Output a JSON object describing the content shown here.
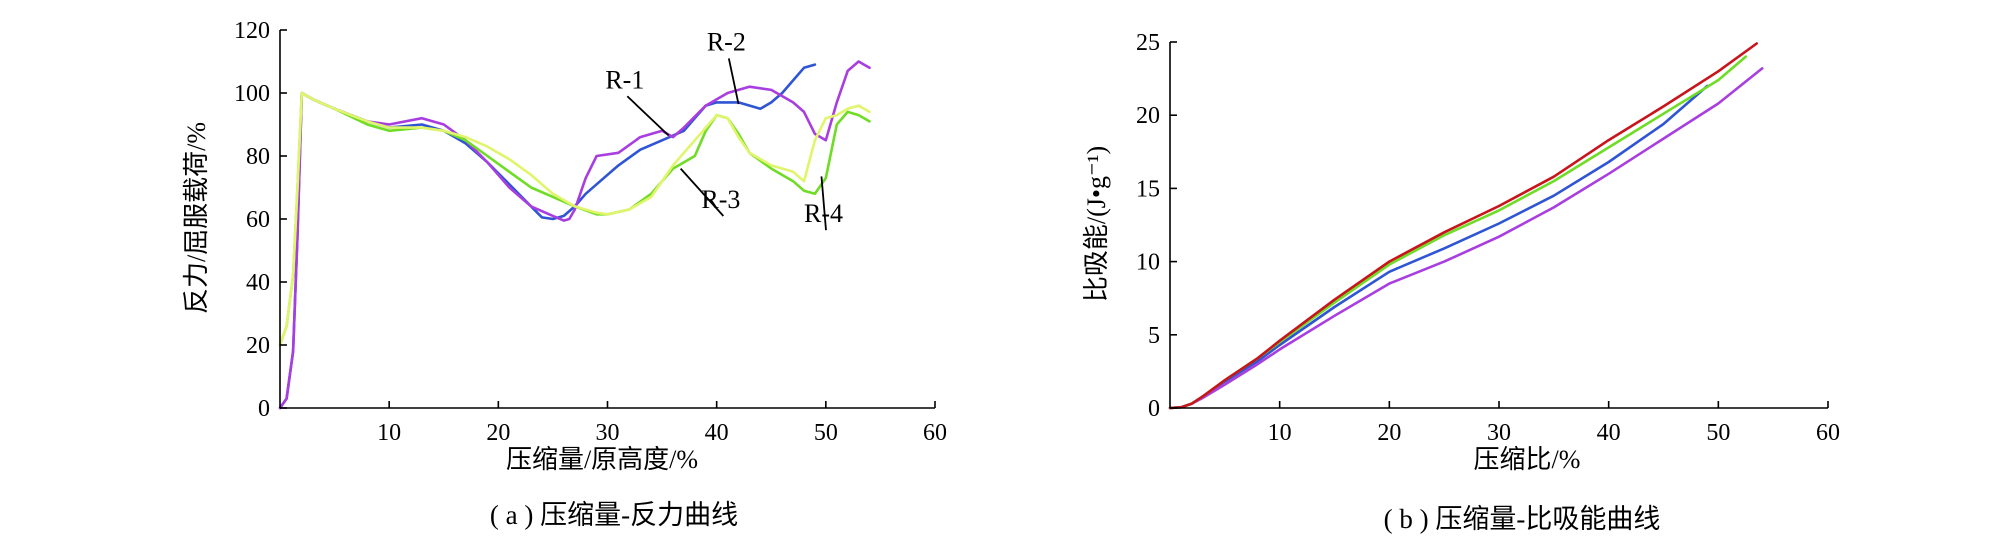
{
  "chart_data": [
    {
      "type": "line",
      "caption": "( a ) 压缩量-反力曲线",
      "xlabel": "压缩量/原高度/%",
      "ylabel": "反力/屈服载荷/%",
      "xlim": [
        0,
        60
      ],
      "ylim": [
        0,
        120
      ],
      "xticks": [
        10,
        20,
        30,
        40,
        50,
        60
      ],
      "yticks": [
        0,
        20,
        40,
        60,
        80,
        100,
        120
      ],
      "grid": false,
      "series": [
        {
          "name": "R-1",
          "color": "#2f55d4",
          "points": [
            [
              0,
              0
            ],
            [
              0.6,
              3
            ],
            [
              1.2,
              18
            ],
            [
              1.6,
              55
            ],
            [
              2.0,
              100
            ],
            [
              3,
              98
            ],
            [
              5,
              95
            ],
            [
              8,
              91
            ],
            [
              10,
              89
            ],
            [
              13,
              90
            ],
            [
              15,
              88
            ],
            [
              17,
              84
            ],
            [
              19,
              78
            ],
            [
              21,
              71
            ],
            [
              23,
              64
            ],
            [
              24,
              60.5
            ],
            [
              25,
              60
            ],
            [
              26,
              61
            ],
            [
              27,
              64
            ],
            [
              28,
              68
            ],
            [
              29,
              71
            ],
            [
              31,
              77
            ],
            [
              33,
              82
            ],
            [
              35,
              85
            ],
            [
              37,
              88
            ],
            [
              38,
              92
            ],
            [
              39,
              96
            ],
            [
              40,
              97
            ],
            [
              42,
              97
            ],
            [
              44,
              95
            ],
            [
              45,
              97
            ],
            [
              46,
              100
            ],
            [
              47,
              104
            ],
            [
              48,
              108
            ],
            [
              49,
              109
            ]
          ]
        },
        {
          "name": "R-2",
          "color": "#a93ee0",
          "points": [
            [
              0,
              0
            ],
            [
              0.6,
              3
            ],
            [
              1.2,
              18
            ],
            [
              1.6,
              55
            ],
            [
              2.0,
              100
            ],
            [
              3,
              98
            ],
            [
              5,
              95
            ],
            [
              8,
              91
            ],
            [
              10,
              90
            ],
            [
              13,
              92
            ],
            [
              15,
              90
            ],
            [
              17,
              85
            ],
            [
              19,
              78
            ],
            [
              21,
              70
            ],
            [
              23,
              64
            ],
            [
              25,
              61
            ],
            [
              26,
              59.5
            ],
            [
              26.5,
              60
            ],
            [
              27,
              63
            ],
            [
              28,
              73
            ],
            [
              29,
              80
            ],
            [
              31,
              81
            ],
            [
              33,
              86
            ],
            [
              35,
              88
            ],
            [
              36,
              86
            ],
            [
              37,
              89
            ],
            [
              39,
              96
            ],
            [
              41,
              100
            ],
            [
              43,
              102
            ],
            [
              45,
              101
            ],
            [
              47,
              97
            ],
            [
              48,
              94
            ],
            [
              49,
              87
            ],
            [
              50,
              85
            ],
            [
              51,
              97
            ],
            [
              52,
              107
            ],
            [
              53,
              110
            ],
            [
              54,
              108
            ]
          ]
        },
        {
          "name": "R-3",
          "color": "#6fdc25",
          "points": [
            [
              0,
              20
            ],
            [
              0.6,
              26
            ],
            [
              1.2,
              42
            ],
            [
              1.6,
              70
            ],
            [
              2.0,
              100
            ],
            [
              3,
              98
            ],
            [
              5,
              95
            ],
            [
              8,
              90
            ],
            [
              10,
              88
            ],
            [
              13,
              89
            ],
            [
              15,
              88
            ],
            [
              17,
              85
            ],
            [
              19,
              80
            ],
            [
              21,
              75
            ],
            [
              23,
              70
            ],
            [
              25,
              67
            ],
            [
              27,
              64
            ],
            [
              29,
              61.5
            ],
            [
              30,
              61.5
            ],
            [
              32,
              63
            ],
            [
              34,
              68
            ],
            [
              36,
              76
            ],
            [
              38,
              80
            ],
            [
              39,
              88
            ],
            [
              40,
              93
            ],
            [
              41,
              92
            ],
            [
              42,
              87
            ],
            [
              43,
              81
            ],
            [
              45,
              76
            ],
            [
              47,
              72
            ],
            [
              48,
              69
            ],
            [
              49,
              68
            ],
            [
              50,
              73
            ],
            [
              51,
              90
            ],
            [
              52,
              94
            ],
            [
              53,
              93
            ],
            [
              54,
              91
            ]
          ]
        },
        {
          "name": "R-4",
          "color": "#e0f56b",
          "points": [
            [
              0,
              20
            ],
            [
              0.6,
              26
            ],
            [
              1.2,
              42
            ],
            [
              1.6,
              70
            ],
            [
              2.0,
              100
            ],
            [
              3,
              98
            ],
            [
              5,
              95
            ],
            [
              8,
              91
            ],
            [
              10,
              89
            ],
            [
              13,
              89
            ],
            [
              15,
              88
            ],
            [
              17,
              86
            ],
            [
              19,
              83
            ],
            [
              21,
              79
            ],
            [
              23,
              74
            ],
            [
              25,
              68
            ],
            [
              27,
              64
            ],
            [
              29,
              62
            ],
            [
              30,
              61.5
            ],
            [
              32,
              63
            ],
            [
              34,
              67
            ],
            [
              36,
              77
            ],
            [
              38,
              85
            ],
            [
              40,
              93
            ],
            [
              41,
              92
            ],
            [
              42,
              86
            ],
            [
              43,
              81
            ],
            [
              45,
              77
            ],
            [
              47,
              75
            ],
            [
              48,
              72
            ],
            [
              49,
              85
            ],
            [
              50,
              92
            ],
            [
              51,
              93
            ],
            [
              52,
              95
            ],
            [
              53,
              96
            ],
            [
              54,
              94
            ]
          ]
        }
      ],
      "annotations": [
        {
          "text": "R-1",
          "x": 29.8,
          "y": 101.5,
          "target": [
            35.6,
            86.5
          ]
        },
        {
          "text": "R-2",
          "x": 39.1,
          "y": 113.5,
          "target": [
            42.0,
            96.5
          ]
        },
        {
          "text": "R-3",
          "x": 38.6,
          "y": 63.5,
          "target": [
            36.7,
            76.0
          ]
        },
        {
          "text": "R-4",
          "x": 48.0,
          "y": 59.0,
          "target": [
            49.6,
            73.5
          ]
        }
      ]
    },
    {
      "type": "line",
      "caption": "( b ) 压缩量-比吸能曲线",
      "xlabel": "压缩比/%",
      "ylabel": "比吸能/(J•g⁻¹)",
      "xlim": [
        0,
        60
      ],
      "ylim": [
        0,
        25
      ],
      "xticks": [
        10,
        20,
        30,
        40,
        50,
        60
      ],
      "yticks": [
        0,
        5,
        10,
        15,
        20,
        25
      ],
      "grid": false,
      "series": [
        {
          "name": "R-1",
          "color": "#2f55d4",
          "points": [
            [
              0,
              0
            ],
            [
              1,
              0.05
            ],
            [
              2,
              0.3
            ],
            [
              3,
              0.8
            ],
            [
              5,
              1.8
            ],
            [
              8,
              3.2
            ],
            [
              10,
              4.3
            ],
            [
              15,
              6.9
            ],
            [
              20,
              9.3
            ],
            [
              25,
              10.9
            ],
            [
              30,
              12.6
            ],
            [
              35,
              14.5
            ],
            [
              40,
              16.8
            ],
            [
              45,
              19.4
            ],
            [
              49,
              22.0
            ]
          ]
        },
        {
          "name": "R-2",
          "color": "#a93ee0",
          "points": [
            [
              0,
              0
            ],
            [
              1,
              0.05
            ],
            [
              2,
              0.3
            ],
            [
              3,
              0.7
            ],
            [
              5,
              1.6
            ],
            [
              8,
              3.0
            ],
            [
              10,
              4.0
            ],
            [
              15,
              6.3
            ],
            [
              20,
              8.5
            ],
            [
              25,
              10.0
            ],
            [
              30,
              11.7
            ],
            [
              35,
              13.7
            ],
            [
              40,
              16.0
            ],
            [
              45,
              18.4
            ],
            [
              50,
              20.8
            ],
            [
              54,
              23.2
            ]
          ]
        },
        {
          "name": "R-3",
          "color": "#6fdc25",
          "points": [
            [
              0,
              0
            ],
            [
              1,
              0.05
            ],
            [
              2,
              0.3
            ],
            [
              3,
              0.8
            ],
            [
              5,
              1.9
            ],
            [
              8,
              3.4
            ],
            [
              10,
              4.5
            ],
            [
              15,
              7.2
            ],
            [
              20,
              9.8
            ],
            [
              25,
              11.8
            ],
            [
              30,
              13.5
            ],
            [
              35,
              15.5
            ],
            [
              40,
              17.8
            ],
            [
              45,
              20.1
            ],
            [
              50,
              22.4
            ],
            [
              52.5,
              24.0
            ]
          ]
        },
        {
          "name": "R-4",
          "color": "#c8141c",
          "points": [
            [
              0,
              0
            ],
            [
              1,
              0.05
            ],
            [
              2,
              0.3
            ],
            [
              3,
              0.8
            ],
            [
              5,
              1.9
            ],
            [
              8,
              3.4
            ],
            [
              10,
              4.6
            ],
            [
              15,
              7.4
            ],
            [
              20,
              10.0
            ],
            [
              25,
              12.0
            ],
            [
              30,
              13.8
            ],
            [
              35,
              15.8
            ],
            [
              40,
              18.3
            ],
            [
              45,
              20.6
            ],
            [
              50,
              23.0
            ],
            [
              53.5,
              24.9
            ]
          ]
        }
      ]
    }
  ]
}
